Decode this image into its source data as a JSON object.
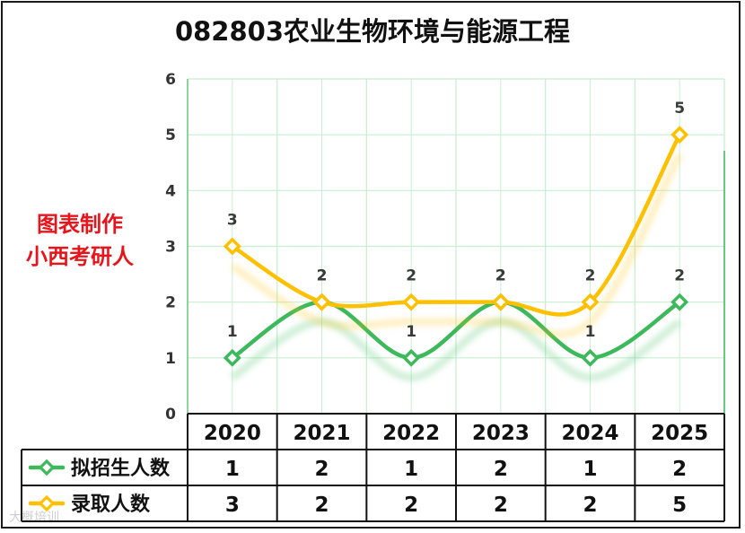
{
  "title": "082803农业生物环境与能源工程",
  "side_note": [
    "图表制作",
    "小西考研人"
  ],
  "watermark": "大概培训",
  "chart_data": {
    "type": "line",
    "title": "082803农业生物环境与能源工程",
    "categories": [
      "2020",
      "2021",
      "2022",
      "2023",
      "2024",
      "2025"
    ],
    "series": [
      {
        "name": "拟招生人数",
        "values": [
          1,
          2,
          1,
          2,
          1,
          2
        ],
        "color": "#3cb95a"
      },
      {
        "name": "录取人数",
        "values": [
          3,
          2,
          2,
          2,
          2,
          5
        ],
        "color": "#ffc000"
      }
    ],
    "ylim": [
      0,
      6
    ],
    "yticks": [
      0,
      1,
      2,
      3,
      4,
      5,
      6
    ],
    "smooth": true,
    "grid": true,
    "grid_color": "#c9efd3",
    "legend": "data table below plot",
    "data_labels": true
  }
}
